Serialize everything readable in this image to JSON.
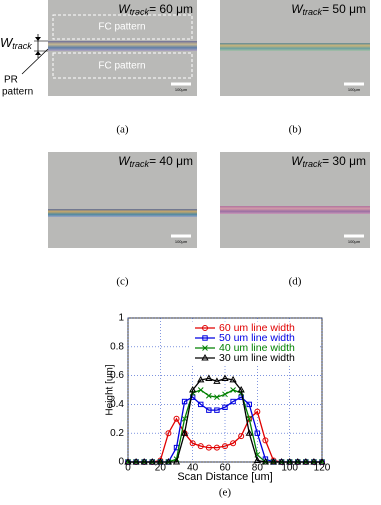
{
  "panels": [
    {
      "w": "W",
      "sub": "track",
      "eq": "= 60 μm",
      "caption": "(a)",
      "scale": "100μm"
    },
    {
      "w": "W",
      "sub": "track",
      "eq": "= 50 μm",
      "caption": "(b)",
      "scale": "100μm"
    },
    {
      "w": "W",
      "sub": "track",
      "eq": "= 40 μm",
      "caption": "(c)",
      "scale": "100μm"
    },
    {
      "w": "W",
      "sub": "track",
      "eq": "= 30 μm",
      "caption": "(d)",
      "scale": "100μm"
    }
  ],
  "annotations": {
    "fc_top": "FC pattern",
    "fc_bottom": "FC pattern",
    "w": "W",
    "sub": "track",
    "pr_line1": "PR",
    "pr_line2": "pattern"
  },
  "chart_data": {
    "type": "line",
    "caption": "(e)",
    "xlabel": "Scan Distance [um]",
    "ylabel": "Height [um]",
    "x": [
      0,
      5,
      10,
      15,
      20,
      25,
      30,
      35,
      40,
      45,
      50,
      55,
      60,
      65,
      70,
      75,
      80,
      85,
      90,
      95,
      100,
      105,
      110,
      115,
      120
    ],
    "series": [
      {
        "name": "60 um line width",
        "color": "#e00000",
        "marker": "circle",
        "values": [
          0,
          0,
          0,
          0,
          0.01,
          0.2,
          0.3,
          0.2,
          0.13,
          0.11,
          0.1,
          0.1,
          0.11,
          0.13,
          0.18,
          0.3,
          0.35,
          0.15,
          0.01,
          0,
          0,
          0,
          0,
          0,
          0
        ]
      },
      {
        "name": "50 um line width",
        "color": "#0000e0",
        "marker": "square",
        "values": [
          0,
          0,
          0,
          0,
          0,
          0,
          0.1,
          0.42,
          0.45,
          0.4,
          0.36,
          0.36,
          0.38,
          0.42,
          0.45,
          0.4,
          0.2,
          0.02,
          0,
          0,
          0,
          0,
          0,
          0,
          0
        ]
      },
      {
        "name": "40 um line width",
        "color": "#008000",
        "marker": "cross",
        "values": [
          0,
          0,
          0,
          0,
          0,
          0,
          0.02,
          0.3,
          0.48,
          0.5,
          0.46,
          0.45,
          0.47,
          0.5,
          0.48,
          0.3,
          0.05,
          0,
          0,
          0,
          0,
          0,
          0,
          0,
          0
        ]
      },
      {
        "name": "30 um line width",
        "color": "#000000",
        "marker": "triangle",
        "values": [
          0,
          0,
          0,
          0,
          0,
          0,
          0,
          0.2,
          0.5,
          0.57,
          0.58,
          0.56,
          0.58,
          0.57,
          0.5,
          0.2,
          0.01,
          0,
          0,
          0,
          0,
          0,
          0,
          0,
          0
        ]
      }
    ],
    "xlim": [
      0,
      120
    ],
    "xticks": [
      0,
      20,
      40,
      60,
      80,
      100,
      120
    ],
    "ylim": [
      0,
      1
    ],
    "yticks": [
      0,
      0.2,
      0.4,
      0.6,
      0.8,
      1
    ],
    "grid": true
  }
}
